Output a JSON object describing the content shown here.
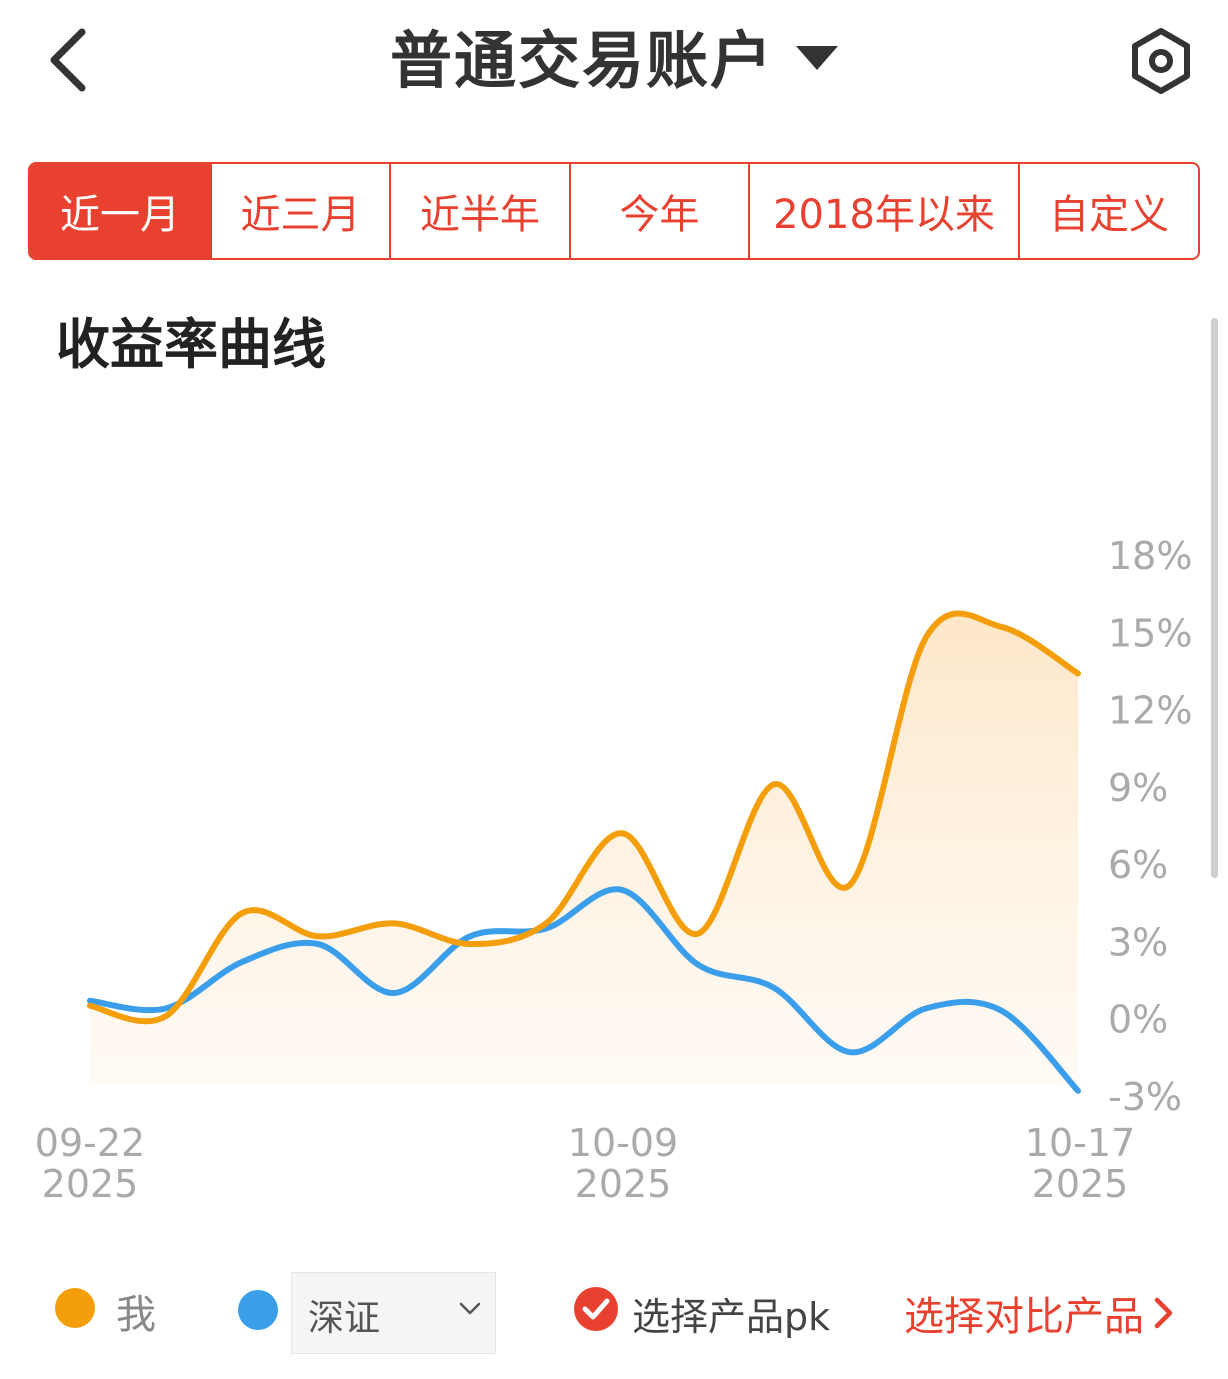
{
  "header": {
    "title": "普通交易账户",
    "back_icon": "chevron-left-icon",
    "dropdown_icon": "caret-down-icon",
    "settings_icon": "hexagon-settings-icon"
  },
  "tabs": [
    {
      "label": "近一月",
      "active": true
    },
    {
      "label": "近三月",
      "active": false
    },
    {
      "label": "近半年",
      "active": false
    },
    {
      "label": "今年",
      "active": false
    },
    {
      "label": "2018年以来",
      "active": false
    },
    {
      "label": "自定义",
      "active": false
    }
  ],
  "section": {
    "title": "收益率曲线"
  },
  "colors": {
    "accent": "#e8412f",
    "series_me": "#f59e0b",
    "series_benchmark": "#3b9eea",
    "fill_me": "#fde9cf",
    "axis_text": "#aaaaaa"
  },
  "chart_data": {
    "type": "line",
    "y_ticks": [
      "18%",
      "15%",
      "12%",
      "9%",
      "6%",
      "3%",
      "0%",
      "-3%"
    ],
    "y_tick_values": [
      18,
      15,
      12,
      9,
      6,
      3,
      0,
      -3
    ],
    "ylim": [
      -3,
      18
    ],
    "x_ticks": [
      {
        "date": "09-22",
        "year": "2025"
      },
      {
        "date": "10-09",
        "year": "2025"
      },
      {
        "date": "10-17",
        "year": "2025"
      }
    ],
    "legend_position": "bottom",
    "series": [
      {
        "name": "我",
        "color": "#f59e0b",
        "area": true,
        "values": [
          0.5,
          0.1,
          4.1,
          3.2,
          3.7,
          2.9,
          3.7,
          7.2,
          3.3,
          9.1,
          5.2,
          14.8,
          15.2,
          13.4
        ]
      },
      {
        "name": "深证",
        "color": "#3b9eea",
        "area": false,
        "values": [
          0.7,
          0.4,
          2.2,
          2.9,
          1.0,
          3.2,
          3.5,
          5.0,
          2.1,
          1.2,
          -1.3,
          0.4,
          0.3,
          -2.8
        ]
      }
    ]
  },
  "legend": {
    "me_label": "我",
    "benchmark_label": "深证",
    "pk_label": "选择产品pk",
    "compare_label": "选择对比产品"
  }
}
